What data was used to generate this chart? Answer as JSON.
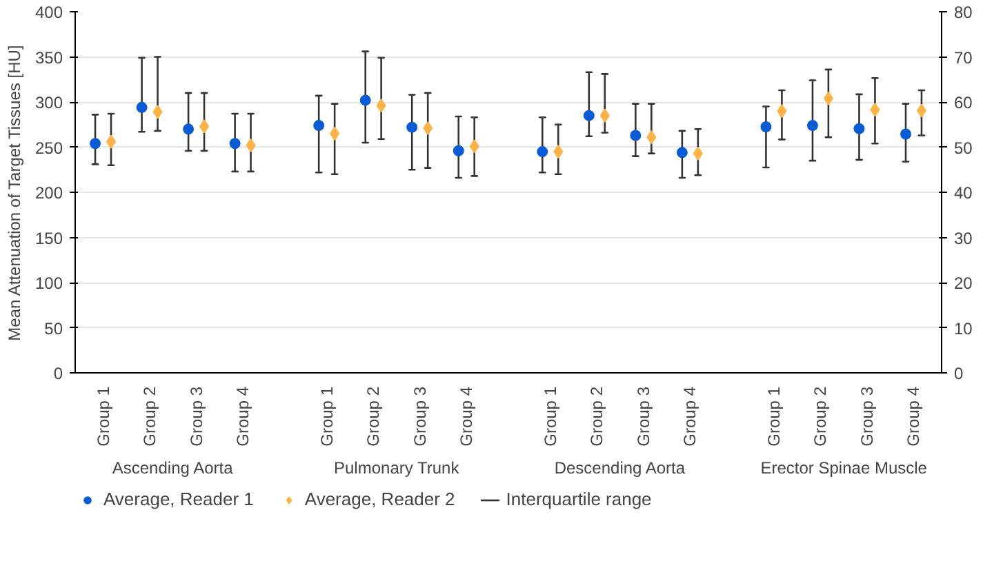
{
  "chart_data": {
    "type": "scatter",
    "ylabel": "Mean Attenuation of Target Tissues [HU]",
    "categories": [
      "Group 1",
      "Group 2",
      "Group 3",
      "Group 4",
      "Group 1",
      "Group 2",
      "Group 3",
      "Group 4",
      "Group 1",
      "Group 2",
      "Group 3",
      "Group 4",
      "Group 1",
      "Group 2",
      "Group 3",
      "Group 4"
    ],
    "series": [
      {
        "name": "Average, Reader 1",
        "color": "#0a5bd6",
        "marker": "circle",
        "values": [
          254,
          294,
          270,
          254,
          274,
          302,
          272,
          246,
          245,
          285,
          263,
          244,
          null,
          null,
          null,
          null
        ],
        "errors": [
          [
            231,
            286
          ],
          [
            267,
            349
          ],
          [
            246,
            310
          ],
          [
            223,
            287
          ],
          [
            222,
            307
          ],
          [
            255,
            356
          ],
          [
            225,
            308
          ],
          [
            216,
            284
          ],
          [
            222,
            283
          ],
          [
            262,
            333
          ],
          [
            240,
            298
          ],
          [
            216,
            268
          ],
          null,
          null,
          null,
          null
        ]
      },
      {
        "name": "Average, Reader 2",
        "color": "#ffb347",
        "marker": "diamond",
        "values": [
          256,
          289,
          273,
          252,
          265,
          296,
          271,
          251,
          245,
          285,
          261,
          243,
          null,
          null,
          null,
          null
        ],
        "errors": [
          [
            230,
            287
          ],
          [
            268,
            350
          ],
          [
            246,
            310
          ],
          [
            223,
            287
          ],
          [
            220,
            298
          ],
          [
            259,
            349
          ],
          [
            227,
            310
          ],
          [
            218,
            283
          ],
          [
            220,
            275
          ],
          [
            266,
            331
          ],
          [
            243,
            298
          ],
          [
            219,
            270
          ],
          null,
          null,
          null,
          null
        ]
      },
      {
        "color": "#0a5bd6",
        "marker": "circle",
        "axis": "y2",
        "values": [
          null,
          null,
          null,
          null,
          null,
          null,
          null,
          null,
          null,
          null,
          null,
          null,
          54.5,
          54.8,
          54.1,
          52.9
        ],
        "errors": [
          null,
          null,
          null,
          null,
          null,
          null,
          null,
          null,
          null,
          null,
          null,
          null,
          [
            45.5,
            59
          ],
          [
            47,
            64.8
          ],
          [
            47.2,
            61.7
          ],
          [
            46.8,
            59.6
          ]
        ]
      },
      {
        "color": "#ffb347",
        "marker": "diamond",
        "axis": "y2",
        "values": [
          null,
          null,
          null,
          null,
          null,
          null,
          null,
          null,
          null,
          null,
          null,
          null,
          58,
          60.8,
          58.3,
          58.1
        ],
        "errors": [
          null,
          null,
          null,
          null,
          null,
          null,
          null,
          null,
          null,
          null,
          null,
          null,
          [
            51.7,
            62.6
          ],
          [
            52.2,
            67.2
          ],
          [
            50.8,
            65.3
          ],
          [
            52.6,
            62.6
          ]
        ]
      }
    ],
    "annotations": [
      "Ascending Aorta",
      "Pulmonary Trunk",
      "Descending Aorta",
      "Erector Spinae Muscle",
      "Interquartile range"
    ],
    "ylim": [
      0,
      400
    ],
    "yticks": [
      0,
      50,
      100,
      150,
      200,
      250,
      300,
      350,
      400
    ],
    "y2lim": [
      0,
      80
    ],
    "y2ticks": [
      0,
      10,
      20,
      30,
      40,
      50,
      60,
      70,
      80
    ],
    "grid": "y",
    "legend": "bottom"
  }
}
